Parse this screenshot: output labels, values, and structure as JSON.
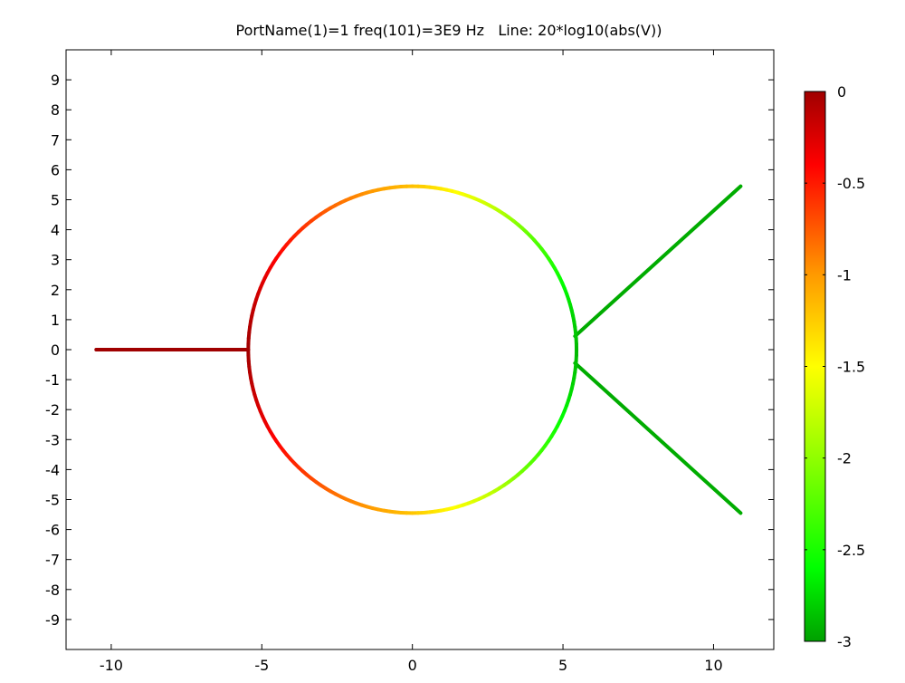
{
  "chart_data": {
    "type": "line",
    "title": "PortName(1)=1 freq(101)=3E9 Hz   Line: 20*log10(abs(V))",
    "xlabel": "",
    "ylabel": "",
    "xlim": [
      -11.5,
      12
    ],
    "ylim": [
      -10,
      10
    ],
    "x_ticks": [
      -10,
      -5,
      0,
      5,
      10
    ],
    "y_ticks": [
      9,
      8,
      7,
      6,
      5,
      4,
      3,
      2,
      1,
      0,
      -1,
      -2,
      -3,
      -4,
      -5,
      -6,
      -7,
      -8,
      -9
    ],
    "grid": false,
    "geometry": {
      "feed_line": {
        "from": [
          -10.5,
          0
        ],
        "to": [
          -5.45,
          0
        ],
        "value": 0
      },
      "ring": {
        "center": [
          0,
          0
        ],
        "radius": 5.45,
        "angle_deg": [
          0,
          15,
          30,
          45,
          60,
          75,
          90,
          105,
          120,
          135,
          150,
          165,
          180
        ],
        "values": [
          -2.9,
          -2.75,
          -2.5,
          -2.2,
          -1.8,
          -1.5,
          -1.2,
          -1.0,
          -0.8,
          -0.55,
          -0.35,
          -0.15,
          0
        ]
      },
      "upper_branch": {
        "from": [
          5.4,
          0.45
        ],
        "to": [
          10.9,
          5.45
        ],
        "value": -2.95
      },
      "lower_branch": {
        "from": [
          5.4,
          -0.45
        ],
        "to": [
          10.9,
          -5.45
        ],
        "value": -2.95
      }
    },
    "colorbar": {
      "range": [
        -3,
        0
      ],
      "ticks": [
        "0",
        "-0.5",
        "-1",
        "-1.5",
        "-2",
        "-2.5",
        "-3"
      ],
      "tick_values": [
        0,
        -0.5,
        -1,
        -1.5,
        -2,
        -2.5,
        -3
      ],
      "colormap": [
        {
          "value": 0,
          "color": "#a00000"
        },
        {
          "value": -0.4,
          "color": "#ff0000"
        },
        {
          "value": -1.0,
          "color": "#ff9a00"
        },
        {
          "value": -1.5,
          "color": "#ffff00"
        },
        {
          "value": -2.0,
          "color": "#90ff00"
        },
        {
          "value": -2.6,
          "color": "#00ff00"
        },
        {
          "value": -3,
          "color": "#00a000"
        }
      ]
    }
  }
}
